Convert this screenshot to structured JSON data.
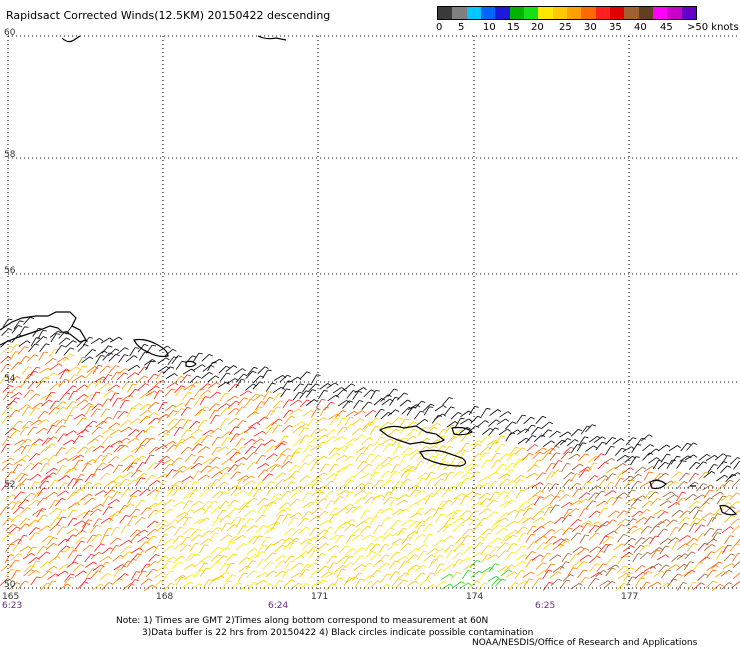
{
  "title": "Rapidsact Corrected Winds(12.5KM) 20150422 descending",
  "legend": {
    "colors": [
      "#3a3a3a",
      "#7f7f7f",
      "#00c8ff",
      "#0064ff",
      "#1a1adc",
      "#00b400",
      "#18e018",
      "#ffe800",
      "#ffc800",
      "#ffa000",
      "#ff6a00",
      "#ff2020",
      "#e00000",
      "#a06030",
      "#604020",
      "#ff00ff",
      "#c800c8",
      "#6400c8"
    ],
    "labels": [
      "0",
      "5",
      "10",
      "15",
      "20",
      "25",
      "30",
      "35",
      "40",
      "45",
      ">50 knots"
    ]
  },
  "map": {
    "latitudes": [
      "60",
      "58",
      "56",
      "54",
      "52",
      "50"
    ],
    "longitudes": [
      "165",
      "168",
      "171",
      "174",
      "177"
    ],
    "times": [
      "6:23",
      "6:24",
      "6:25"
    ],
    "coastline_color": "#000000",
    "grid_color": "#000000"
  },
  "note_line1": "Note: 1) Times are GMT 2)Times along bottom correspond to measurement at 60N",
  "note_line2": "3)Data buffer is 22 hrs from 20150422 4) Black circles indicate possible contamination",
  "credit": "NOAA/NESDIS/Office of Research and Applications"
}
